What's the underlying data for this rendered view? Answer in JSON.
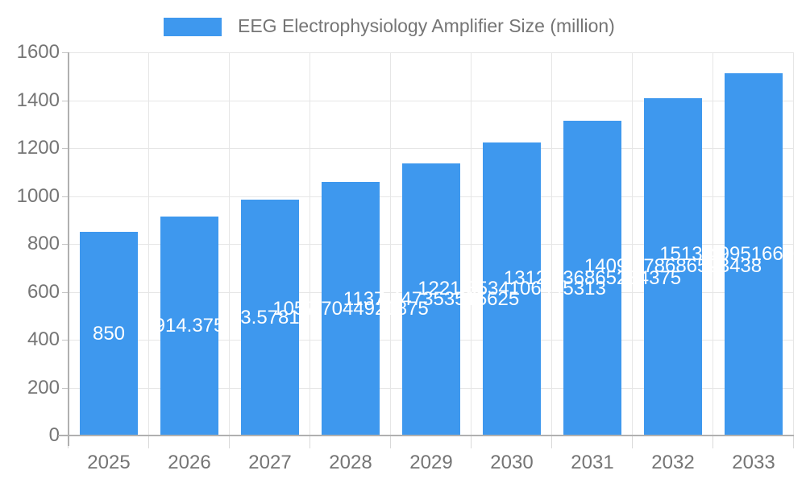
{
  "legend": {
    "label": "EEG Electrophysiology Amplifier Size (million)"
  },
  "chart_data": {
    "type": "bar",
    "title": "EEG Electrophysiology Amplifier Size (million)",
    "categories": [
      "2025",
      "2026",
      "2027",
      "2028",
      "2029",
      "2030",
      "2031",
      "2032",
      "2033"
    ],
    "values": [
      850,
      914.375,
      983.578125,
      1057.7044921875,
      1137.447353515625,
      1221.8534106445313,
      1312.936865234375,
      1409.978686523438,
      1513.4995166015624
    ],
    "value_labels": [
      "850",
      "914.375",
      "983.578125",
      "1057.7044921875",
      "1137.447353515625",
      "1221.8534106445313",
      "1312.936865234375",
      "1409.978686523438",
      "1513.4995166015625"
    ],
    "xlabel": "",
    "ylabel": "",
    "ylim": [
      0,
      1600
    ],
    "ytick_step": 200,
    "ytick_labels": [
      "0",
      "200",
      "400",
      "600",
      "800",
      "1000",
      "1200",
      "1400",
      "1600"
    ],
    "grid": true,
    "legend_position": "top",
    "colors": {
      "bar": "#3E98EE",
      "grid_line": "#e6e6e6",
      "axis_line": "#b0b0b0",
      "axis_text": "#757575",
      "bar_label_text": "#ffffff",
      "background": "#ffffff"
    }
  }
}
